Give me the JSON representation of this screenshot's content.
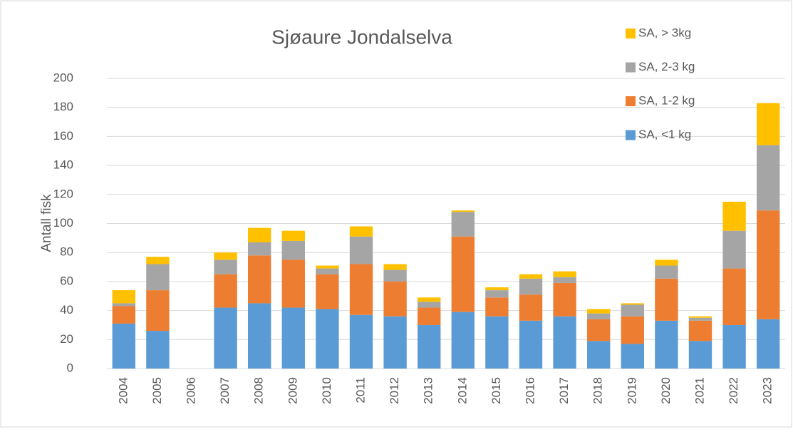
{
  "chart_data": {
    "type": "stacked_bar",
    "title": "Sjøaure Jondalselva",
    "y_label": "Antall fisk",
    "categories": [
      "2004",
      "2005",
      "2006",
      "2007",
      "2008",
      "2009",
      "2010",
      "2011",
      "2012",
      "2013",
      "2014",
      "2015",
      "2016",
      "2017",
      "2018",
      "2019",
      "2020",
      "2021",
      "2022",
      "2023"
    ],
    "series": [
      {
        "name": "SA, <1 kg",
        "color": "#5b9bd5",
        "values": [
          31,
          26,
          null,
          42,
          45,
          42,
          41,
          37,
          36,
          30,
          39,
          36,
          33,
          36,
          19,
          17,
          33,
          19,
          30,
          34
        ]
      },
      {
        "name": "SA, 1-2 kg",
        "color": "#ed7d31",
        "values": [
          12,
          28,
          null,
          23,
          33,
          33,
          24,
          35,
          24,
          12,
          52,
          13,
          18,
          23,
          15,
          19,
          29,
          14,
          39,
          75
        ]
      },
      {
        "name": "SA, 2-3 kg",
        "color": "#a5a5a5",
        "values": [
          2,
          18,
          null,
          10,
          9,
          13,
          4,
          19,
          8,
          4,
          17,
          5,
          11,
          4,
          4,
          8,
          9,
          2,
          26,
          45
        ]
      },
      {
        "name": "SA, > 3kg",
        "color": "#ffc000",
        "values": [
          9,
          5,
          null,
          5,
          10,
          7,
          2,
          7,
          4,
          3,
          1,
          2,
          3,
          4,
          3,
          1,
          4,
          1,
          20,
          29
        ]
      }
    ],
    "ylim": [
      0,
      200
    ],
    "yticks": [
      0,
      20,
      40,
      60,
      80,
      100,
      120,
      140,
      160,
      180,
      200
    ],
    "grid": true,
    "legend": "right"
  }
}
